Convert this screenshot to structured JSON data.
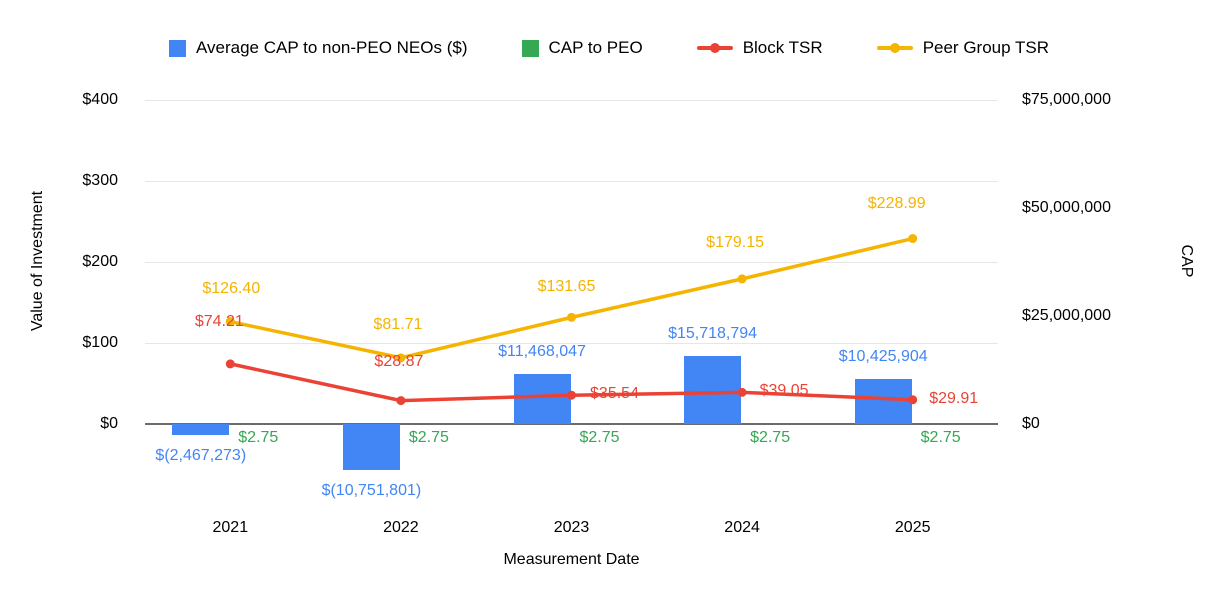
{
  "chart_data": {
    "type": "combo-bar-line",
    "categories": [
      "2021",
      "2022",
      "2023",
      "2024",
      "2025"
    ],
    "xlabel": "Measurement Date",
    "legend_position": "top",
    "grid": true,
    "left_axis": {
      "title": "Value of Investment",
      "range": [
        0,
        400
      ],
      "tick_values": [
        0,
        100,
        200,
        300,
        400
      ],
      "tick_labels": [
        "$0",
        "$100",
        "$200",
        "$300",
        "$400"
      ]
    },
    "right_axis": {
      "title": "CAP",
      "range": [
        0,
        75000000
      ],
      "tick_values": [
        0,
        25000000,
        50000000,
        75000000
      ],
      "tick_labels": [
        "$0",
        "$25,000,000",
        "$50,000,000",
        "$75,000,000"
      ]
    },
    "series": [
      {
        "name": "Average CAP to non-PEO NEOs ($)",
        "type": "bar",
        "axis": "right",
        "color": "#4285f4",
        "values": [
          -2467273,
          -10751801,
          11468047,
          15718794,
          10425904
        ],
        "labels": [
          "$(2,467,273)",
          "$(10,751,801)",
          "$11,468,047",
          "$15,718,794",
          "$10,425,904"
        ]
      },
      {
        "name": "CAP to PEO",
        "type": "bar",
        "axis": "right",
        "color": "#34a853",
        "values": [
          2.75,
          2.75,
          2.75,
          2.75,
          2.75
        ],
        "labels": [
          "$2.75",
          "$2.75",
          "$2.75",
          "$2.75",
          "$2.75"
        ]
      },
      {
        "name": "Block TSR",
        "type": "line",
        "axis": "left",
        "color": "#ea4335",
        "values": [
          74.21,
          28.87,
          35.54,
          39.05,
          29.91
        ],
        "labels": [
          "$74.21",
          "$28.87",
          "$35.54",
          "$39.05",
          "$29.91"
        ]
      },
      {
        "name": "Peer Group TSR",
        "type": "line",
        "axis": "left",
        "color": "#f4b400",
        "values": [
          126.4,
          81.71,
          131.65,
          179.15,
          228.99
        ],
        "labels": [
          "$126.40",
          "$81.71",
          "$131.65",
          "$179.15",
          "$228.99"
        ]
      }
    ]
  }
}
